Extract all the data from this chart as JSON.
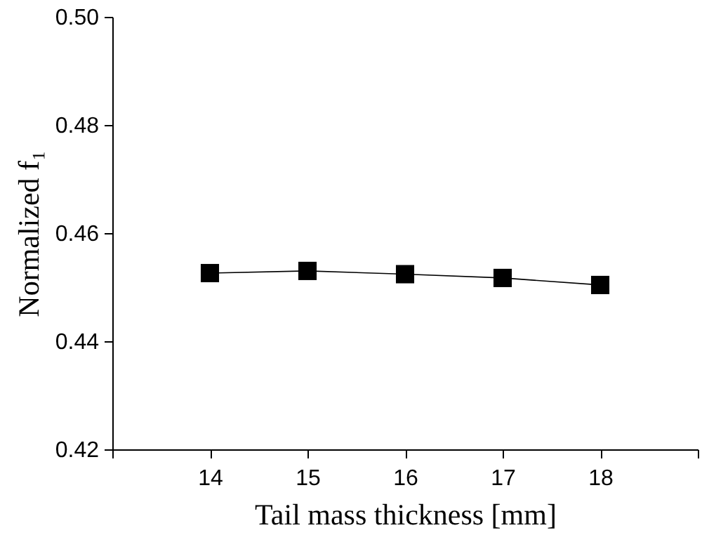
{
  "chart_data": {
    "type": "line",
    "xlabel": "Tail mass thickness [mm]",
    "ylabel": "Normalized f₁",
    "x": [
      14,
      15,
      16,
      17,
      18
    ],
    "series": [
      {
        "color": "#000000",
        "values": [
          0.4526,
          0.453,
          0.4524,
          0.4517,
          0.4504
        ]
      }
    ],
    "xlim": [
      13,
      19
    ],
    "xticks": [
      {
        "value": 13,
        "label": null
      },
      14,
      15,
      16,
      17,
      18,
      {
        "value": 19,
        "label": null
      }
    ],
    "ylim": [
      0.42,
      0.5
    ],
    "yticks": [
      0.42,
      0.44,
      0.46,
      0.48,
      {
        "value": 0.5,
        "label": "0.50"
      }
    ],
    "marker": "square",
    "line_style": "solid",
    "grid": false
  }
}
